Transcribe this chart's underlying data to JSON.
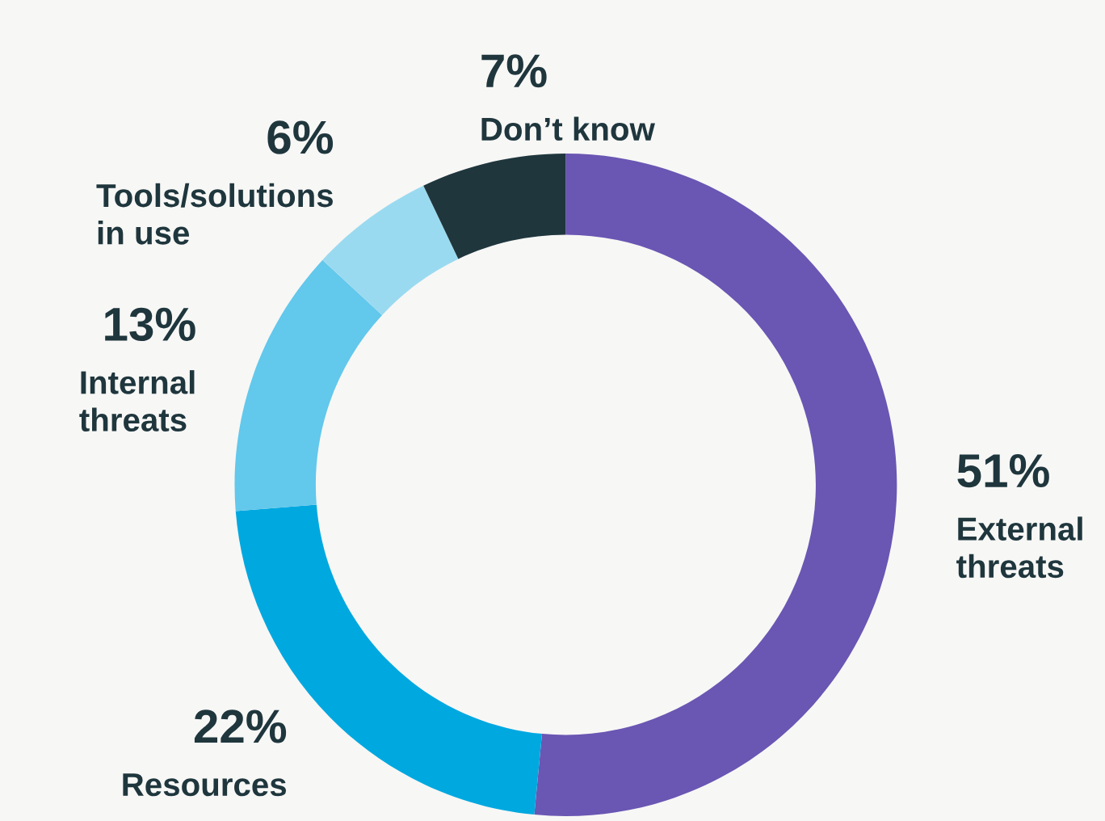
{
  "chart_data": {
    "type": "donut",
    "categories": [
      "External threats",
      "Resources",
      "Internal threats",
      "Tools/solutions in use",
      "Don’t know"
    ],
    "values": [
      51,
      22,
      13,
      6,
      7
    ],
    "value_labels": [
      "51%",
      "22%",
      "13%",
      "6%",
      "7%"
    ],
    "colors": [
      "#6a56b3",
      "#00a8e0",
      "#62c8ec",
      "#9adaf0",
      "#1f363d"
    ]
  }
}
